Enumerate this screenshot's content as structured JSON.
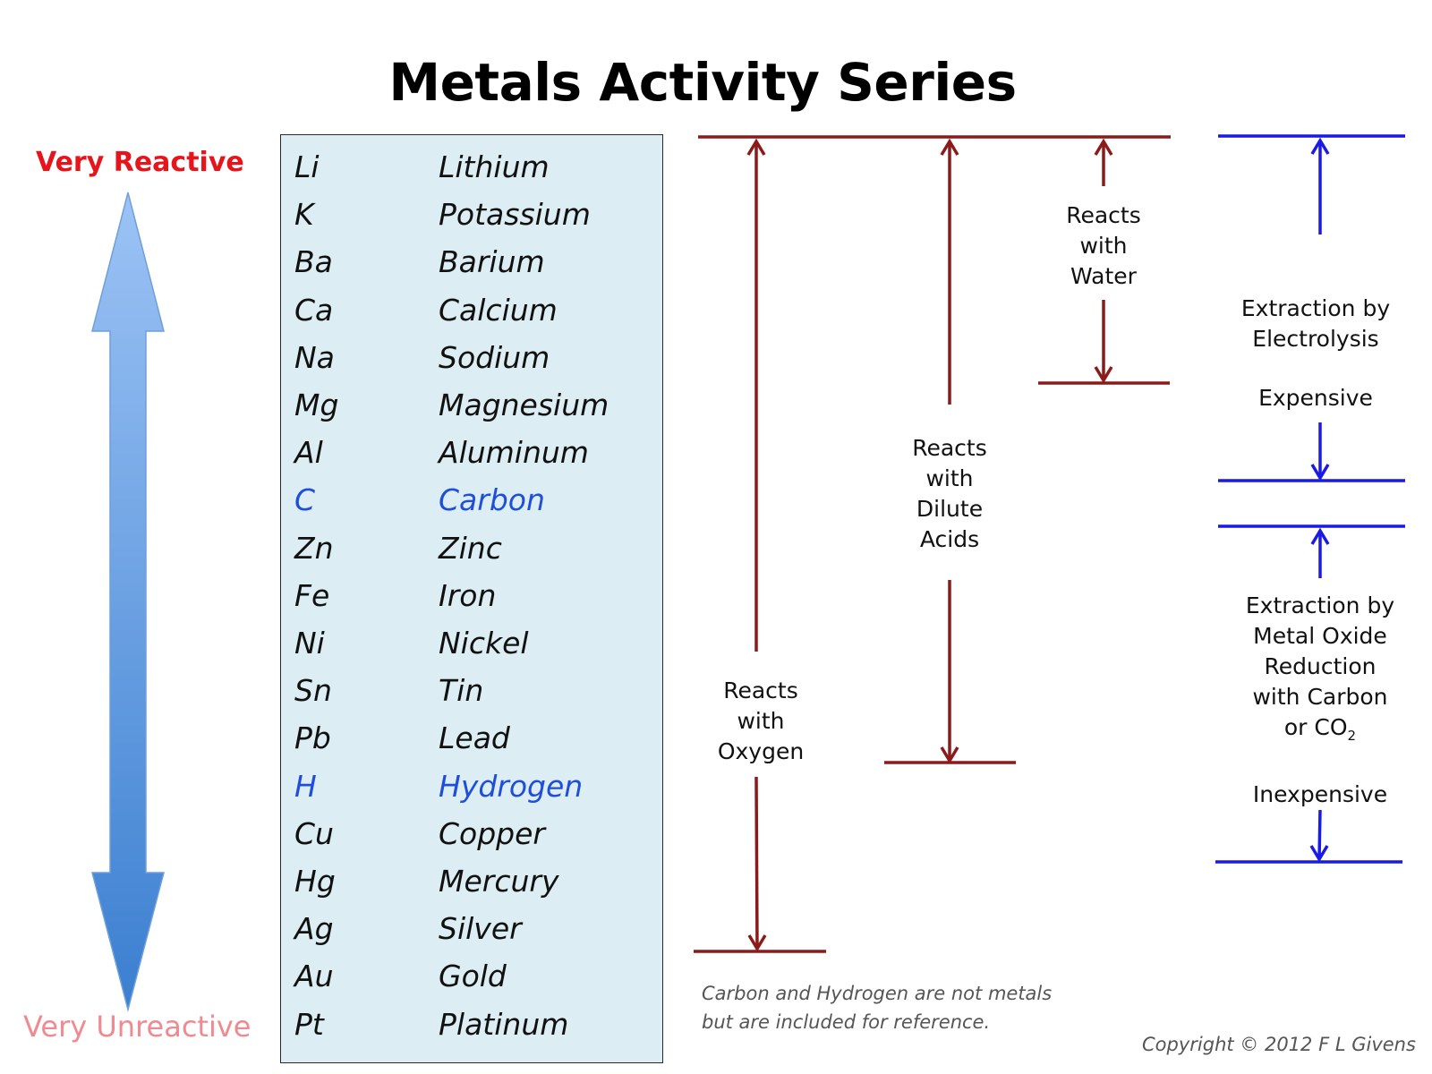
{
  "title": "Metals Activity Series",
  "scale": {
    "top_label": "Very Reactive",
    "bottom_label": "Very Unreactive"
  },
  "metals": [
    {
      "symbol": "Li",
      "name": "Lithium",
      "reference": false
    },
    {
      "symbol": "K",
      "name": "Potassium",
      "reference": false
    },
    {
      "symbol": "Ba",
      "name": "Barium",
      "reference": false
    },
    {
      "symbol": "Ca",
      "name": "Calcium",
      "reference": false
    },
    {
      "symbol": "Na",
      "name": "Sodium",
      "reference": false
    },
    {
      "symbol": "Mg",
      "name": "Magnesium",
      "reference": false
    },
    {
      "symbol": "Al",
      "name": "Aluminum",
      "reference": false
    },
    {
      "symbol": "C",
      "name": "Carbon",
      "reference": true
    },
    {
      "symbol": "Zn",
      "name": "Zinc",
      "reference": false
    },
    {
      "symbol": "Fe",
      "name": "Iron",
      "reference": false
    },
    {
      "symbol": "Ni",
      "name": "Nickel",
      "reference": false
    },
    {
      "symbol": "Sn",
      "name": "Tin",
      "reference": false
    },
    {
      "symbol": "Pb",
      "name": "Lead",
      "reference": false
    },
    {
      "symbol": "H",
      "name": "Hydrogen",
      "reference": true
    },
    {
      "symbol": "Cu",
      "name": "Copper",
      "reference": false
    },
    {
      "symbol": "Hg",
      "name": "Mercury",
      "reference": false
    },
    {
      "symbol": "Ag",
      "name": "Silver",
      "reference": false
    },
    {
      "symbol": "Au",
      "name": "Gold",
      "reference": false
    },
    {
      "symbol": "Pt",
      "name": "Platinum",
      "reference": false
    }
  ],
  "reactions": {
    "oxygen": [
      "Reacts",
      "with",
      "Oxygen"
    ],
    "acids": [
      "Reacts",
      "with",
      "Dilute",
      "Acids"
    ],
    "water": [
      "Reacts",
      "with",
      "Water"
    ]
  },
  "extraction": {
    "electrolysis": [
      "Extraction by",
      "Electrolysis"
    ],
    "electrolysis_cost": "Expensive",
    "reduction": [
      "Extraction by",
      "Metal Oxide",
      "Reduction",
      "with Carbon"
    ],
    "reduction_last": "or CO",
    "reduction_sub": "2",
    "reduction_cost": "Inexpensive"
  },
  "footnote": [
    "Carbon and Hydrogen are not metals",
    "but are included for reference."
  ],
  "copyright": "Copyright © 2012 F L Givens",
  "colors": {
    "title": "#000000",
    "very_reactive": "#e8141b",
    "very_unreactive": "#ef8a90",
    "reference_element": "#1f4fd8",
    "reaction_lines": "#8b1a1a",
    "extraction_lines": "#1a1ae6",
    "box_fill": "#dcedf3"
  }
}
